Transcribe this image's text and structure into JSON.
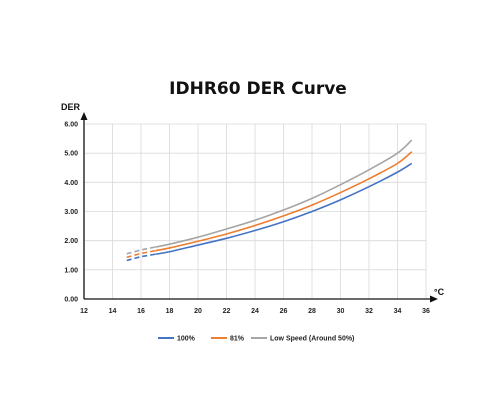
{
  "chart_data": {
    "type": "line",
    "title": "IDHR60  DER Curve",
    "ylabel": "DER",
    "xlabel": "°C",
    "xlim": [
      12,
      36
    ],
    "ylim": [
      0,
      6
    ],
    "xticks": [
      12,
      14,
      16,
      18,
      20,
      22,
      24,
      26,
      28,
      30,
      32,
      34,
      36
    ],
    "yticks": [
      "0.00",
      "1.00",
      "2.00",
      "3.00",
      "4.00",
      "5.00",
      "6.00"
    ],
    "grid": true,
    "legend_position": "bottom",
    "x": [
      15,
      16,
      18,
      20,
      22,
      24,
      26,
      28,
      30,
      32,
      34,
      35
    ],
    "series": [
      {
        "name": "100%",
        "color": "#4472c4",
        "values": [
          1.32,
          1.45,
          1.62,
          1.85,
          2.08,
          2.35,
          2.65,
          3.0,
          3.4,
          3.85,
          4.35,
          4.65
        ]
      },
      {
        "name": "81%",
        "color": "#ed7d31",
        "values": [
          1.43,
          1.56,
          1.75,
          1.98,
          2.23,
          2.52,
          2.85,
          3.22,
          3.65,
          4.12,
          4.65,
          5.05
        ]
      },
      {
        "name": "Low Speed (Around 50%)",
        "color": "#a5a5a5",
        "values": [
          1.55,
          1.68,
          1.88,
          2.12,
          2.4,
          2.7,
          3.05,
          3.45,
          3.92,
          4.43,
          5.0,
          5.45
        ]
      }
    ],
    "dashed_range": [
      15,
      17
    ]
  }
}
